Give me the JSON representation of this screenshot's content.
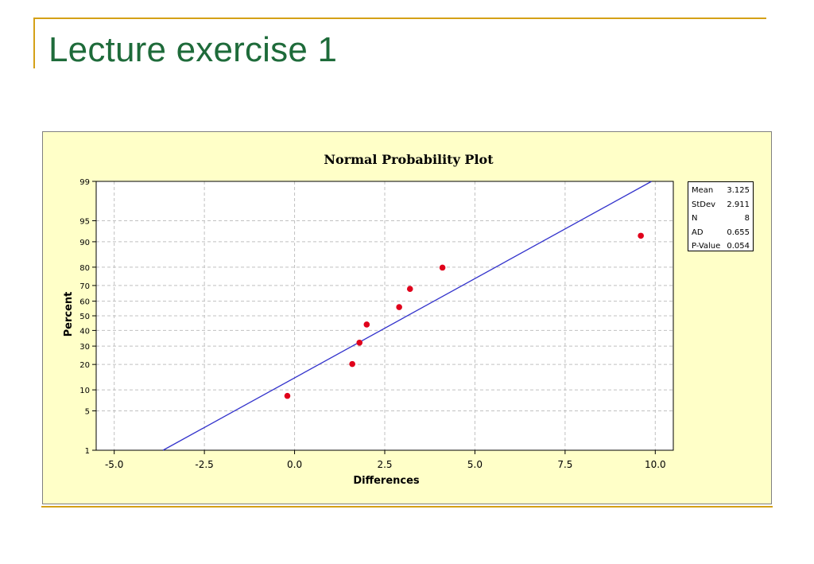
{
  "slide": {
    "title": "Lecture exercise 1"
  },
  "colors": {
    "title": "#1e6b3a",
    "rule": "#d4a017",
    "chart_bg": "#ffffc8",
    "fit_line": "#3333cc",
    "points": "#e0001b",
    "grid": "#c0c0c0"
  },
  "stats": [
    {
      "label": "Mean",
      "value": "3.125"
    },
    {
      "label": "StDev",
      "value": "2.911"
    },
    {
      "label": "N",
      "value": "8"
    },
    {
      "label": "AD",
      "value": "0.655"
    },
    {
      "label": "P-Value",
      "value": "0.054"
    }
  ],
  "chart_data": {
    "type": "scatter",
    "title": "Normal Probability Plot",
    "xlabel": "Differences",
    "ylabel": "Percent",
    "xlim": [
      -5.5,
      10.5
    ],
    "x_ticks": [
      "-5.0",
      "-2.5",
      "0.0",
      "2.5",
      "5.0",
      "7.5",
      "10.0"
    ],
    "x_tick_values": [
      -5,
      -2.5,
      0,
      2.5,
      5,
      7.5,
      10
    ],
    "y_scale": "normal-probability",
    "y_ticks": [
      "1",
      "5",
      "10",
      "20",
      "30",
      "40",
      "50",
      "60",
      "70",
      "80",
      "90",
      "95",
      "99"
    ],
    "y_tick_values": [
      1,
      5,
      10,
      20,
      30,
      40,
      50,
      60,
      70,
      80,
      90,
      95,
      99
    ],
    "points": [
      {
        "x": -0.2,
        "percent": 8.3
      },
      {
        "x": 1.6,
        "percent": 20.2
      },
      {
        "x": 1.8,
        "percent": 32.1
      },
      {
        "x": 2.0,
        "percent": 44.0
      },
      {
        "x": 2.9,
        "percent": 56.0
      },
      {
        "x": 3.2,
        "percent": 67.9
      },
      {
        "x": 4.1,
        "percent": 79.8
      },
      {
        "x": 9.6,
        "percent": 91.7
      }
    ],
    "fit_line": {
      "mean": 3.125,
      "stdev": 2.911
    },
    "grid": true,
    "legend": "right"
  }
}
